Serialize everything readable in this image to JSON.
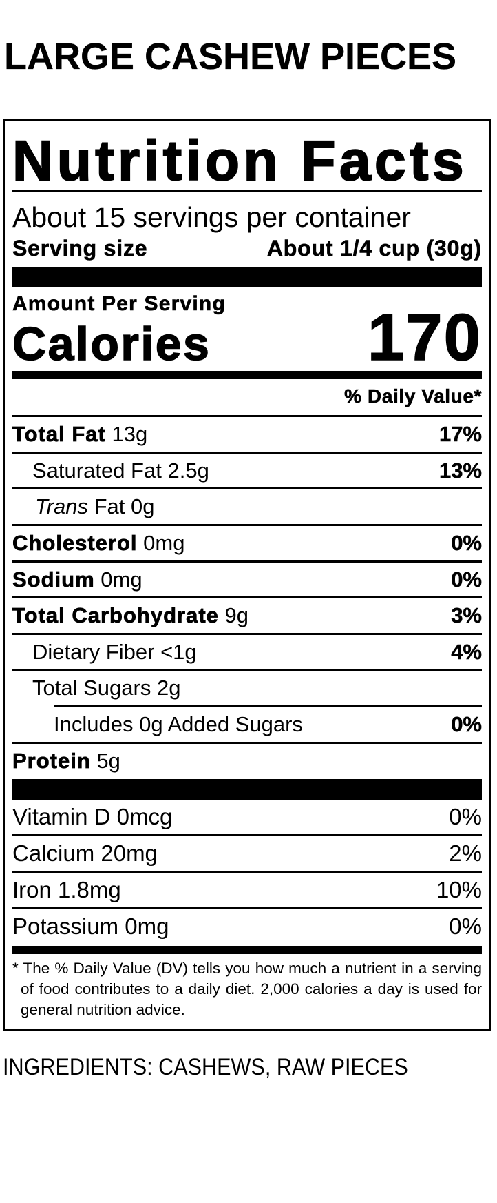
{
  "title": "LARGE CASHEW PIECES",
  "label": {
    "heading": "Nutrition Facts",
    "servings_per_container": "About 15 servings per container",
    "serving_size_label": "Serving size",
    "serving_size_value": "About 1/4 cup (30g)",
    "amount_per_serving": "Amount Per Serving",
    "calories_label": "Calories",
    "calories_value": "170",
    "daily_value_header": "% Daily Value*",
    "nutrients": [
      {
        "name": "Total Fat",
        "amount": "13g",
        "dv": "17%"
      },
      {
        "name": "Saturated Fat",
        "amount": "2.5g",
        "dv": "13%"
      },
      {
        "name": "Trans",
        "amount": "Fat 0g",
        "dv": ""
      },
      {
        "name": "Cholesterol",
        "amount": "0mg",
        "dv": "0%"
      },
      {
        "name": "Sodium",
        "amount": "0mg",
        "dv": "0%"
      },
      {
        "name": "Total Carbohydrate",
        "amount": "9g",
        "dv": "3%"
      },
      {
        "name": "Dietary Fiber",
        "amount": "<1g",
        "dv": "4%"
      },
      {
        "name": "Total Sugars",
        "amount": "2g",
        "dv": ""
      },
      {
        "name": "Includes 0g Added Sugars",
        "amount": "",
        "dv": "0%"
      },
      {
        "name": "Protein",
        "amount": "5g",
        "dv": ""
      }
    ],
    "vitamins": [
      {
        "name": "Vitamin D 0mcg",
        "dv": "0%"
      },
      {
        "name": "Calcium 20mg",
        "dv": "2%"
      },
      {
        "name": "Iron 1.8mg",
        "dv": "10%"
      },
      {
        "name": "Potassium 0mg",
        "dv": "0%"
      }
    ],
    "footnote": "* The % Daily Value (DV) tells you how much a nutrient in a serving of food contributes to a daily diet. 2,000 calories a day is used for general nutrition advice."
  },
  "ingredients": "INGREDIENTS: CASHEWS, RAW PIECES"
}
